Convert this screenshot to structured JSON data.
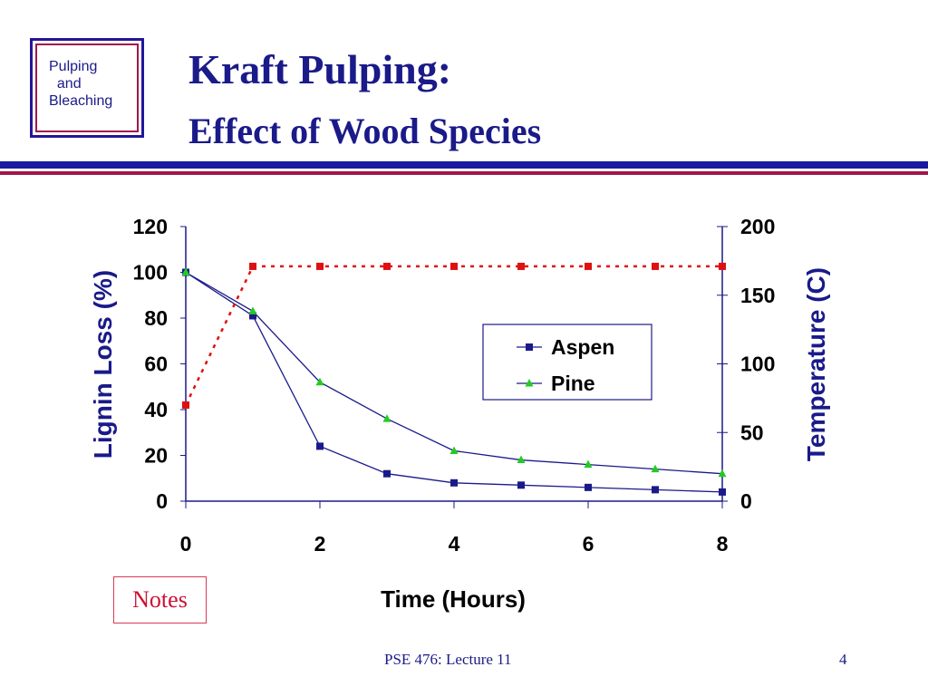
{
  "slide": {
    "logo_text": "Pulping\n  and\nBleaching",
    "title_line1": "Kraft Pulping:",
    "title_line2": "Effect of Wood Species",
    "notes_label": "Notes",
    "footer": "PSE 476: Lecture 11",
    "page_number": "4"
  },
  "colors": {
    "title": "#1a1a8a",
    "rule_blue": "#1a1aa0",
    "rule_red": "#a0174a",
    "aspen": "#1a1a8a",
    "pine": "#22cc22",
    "temperature": "#e01010"
  },
  "chart_data": {
    "type": "line",
    "xlabel": "Time (Hours)",
    "ylabel": "Lignin Loss (%)",
    "y2label": "Temperature (C)",
    "xlim": [
      0,
      8
    ],
    "ylim": [
      0,
      120
    ],
    "y2lim": [
      0,
      200
    ],
    "x_ticks": [
      0,
      2,
      4,
      6,
      8
    ],
    "y_ticks": [
      0,
      20,
      40,
      60,
      80,
      100,
      120
    ],
    "y2_ticks": [
      0,
      50,
      100,
      150,
      200
    ],
    "legend_position": "center-right",
    "series": [
      {
        "name": "Aspen",
        "axis": "left",
        "marker": "square",
        "x": [
          0,
          1,
          2,
          3,
          4,
          5,
          6,
          7,
          8
        ],
        "y": [
          100,
          81,
          24,
          12,
          8,
          7,
          6,
          5,
          4
        ]
      },
      {
        "name": "Pine",
        "axis": "left",
        "marker": "triangle",
        "x": [
          0,
          1,
          2,
          3,
          4,
          5,
          6,
          7,
          8
        ],
        "y": [
          100,
          83,
          52,
          36,
          22,
          18,
          16,
          14,
          12
        ]
      },
      {
        "axis": "right",
        "marker": "square",
        "style": "dotted",
        "x": [
          0,
          1,
          2,
          3,
          4,
          5,
          6,
          7,
          8
        ],
        "y": [
          70,
          171,
          171,
          171,
          171,
          171,
          171,
          171,
          171
        ]
      }
    ]
  }
}
